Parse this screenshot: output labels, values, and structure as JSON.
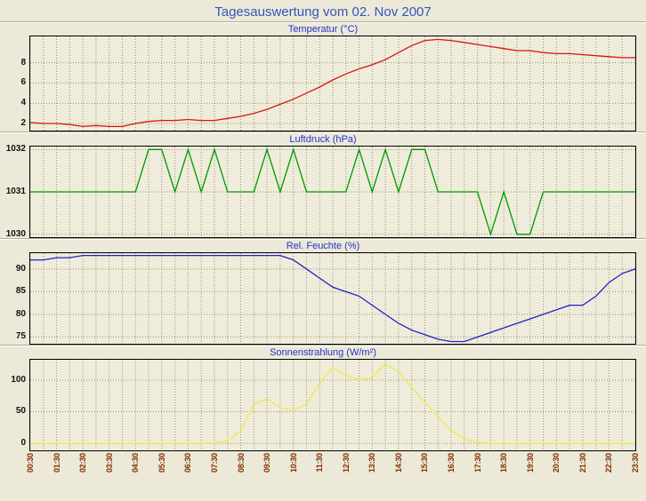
{
  "page": {
    "title": "Tagesauswertung vom 02. Nov 2007"
  },
  "grid_color": "#90906e",
  "x_times": [
    "00:30",
    "01:00",
    "01:30",
    "02:00",
    "02:30",
    "03:00",
    "03:30",
    "04:00",
    "04:30",
    "05:00",
    "05:30",
    "06:00",
    "06:30",
    "07:00",
    "07:30",
    "08:00",
    "08:30",
    "09:00",
    "09:30",
    "10:00",
    "10:30",
    "11:00",
    "11:30",
    "12:00",
    "12:30",
    "13:00",
    "13:30",
    "14:00",
    "14:30",
    "15:00",
    "15:30",
    "16:00",
    "16:30",
    "17:00",
    "17:30",
    "18:00",
    "18:30",
    "19:00",
    "19:30",
    "20:00",
    "20:30",
    "21:00",
    "21:30",
    "22:00",
    "22:30",
    "23:00",
    "23:30"
  ],
  "x_tick_labels": [
    "00:30",
    "01:30",
    "02:30",
    "03:30",
    "04:30",
    "05:30",
    "06:30",
    "07:30",
    "08:30",
    "09:30",
    "10:30",
    "11:30",
    "12:30",
    "13:30",
    "14:30",
    "15:30",
    "16:30",
    "17:30",
    "18:30",
    "19:30",
    "20:30",
    "21:30",
    "22:30",
    "23:30"
  ],
  "chart_data": [
    {
      "type": "line",
      "title": "Temperatur (°C)",
      "color": "#d81414",
      "ylim": [
        1.3,
        10.6
      ],
      "yticks": [
        2,
        4,
        6,
        8
      ],
      "values": [
        2.1,
        2.0,
        2.0,
        1.9,
        1.7,
        1.8,
        1.7,
        1.7,
        2.0,
        2.2,
        2.3,
        2.3,
        2.4,
        2.3,
        2.3,
        2.5,
        2.7,
        3.0,
        3.4,
        3.9,
        4.4,
        5.0,
        5.6,
        6.3,
        6.9,
        7.4,
        7.8,
        8.3,
        9.0,
        9.7,
        10.2,
        10.3,
        10.2,
        10.0,
        9.8,
        9.6,
        9.4,
        9.2,
        9.2,
        9.0,
        8.9,
        8.9,
        8.8,
        8.7,
        8.6,
        8.5,
        8.5
      ]
    },
    {
      "type": "line",
      "title": "Luftdruck (hPa)",
      "color": "#009900",
      "ylim": [
        1029.93,
        1032.07
      ],
      "yticks": [
        1030,
        1031,
        1032
      ],
      "values": [
        1031,
        1031,
        1031,
        1031,
        1031,
        1031,
        1031,
        1031,
        1031,
        1032,
        1032,
        1031,
        1032,
        1031,
        1032,
        1031,
        1031,
        1031,
        1032,
        1031,
        1032,
        1031,
        1031,
        1031,
        1031,
        1032,
        1031,
        1032,
        1031,
        1032,
        1032,
        1031,
        1031,
        1031,
        1031,
        1030,
        1031,
        1030,
        1030,
        1031,
        1031,
        1031,
        1031,
        1031,
        1031,
        1031,
        1031
      ]
    },
    {
      "type": "line",
      "title": "Rel. Feuchte (%)",
      "color": "#2020cc",
      "ylim": [
        73.5,
        93.5
      ],
      "yticks": [
        75,
        80,
        85,
        90
      ],
      "values": [
        92,
        92,
        92.5,
        92.5,
        93,
        93,
        93,
        93,
        93,
        93,
        93,
        93,
        93,
        93,
        93,
        93,
        93,
        93,
        93,
        93,
        92,
        90,
        88,
        86,
        85,
        84,
        82,
        80,
        78,
        76.5,
        75.5,
        74.5,
        74,
        74,
        75,
        76,
        77,
        78,
        79,
        80,
        81,
        82,
        82,
        84,
        87,
        89,
        90
      ]
    },
    {
      "type": "line",
      "title": "Sonnenstrahlung (W/m²)",
      "color": "#ecec45",
      "ylim": [
        -11,
        132
      ],
      "yticks": [
        0,
        50,
        100
      ],
      "values": [
        0,
        0,
        0,
        0,
        0,
        0,
        0,
        0,
        0,
        0,
        0,
        0,
        0,
        0,
        1,
        4,
        20,
        62,
        70,
        56,
        52,
        62,
        95,
        120,
        107,
        100,
        104,
        125,
        113,
        88,
        65,
        42,
        20,
        7,
        2,
        0,
        0,
        0,
        0,
        0,
        0,
        0,
        0,
        0,
        0,
        0,
        0
      ]
    }
  ]
}
